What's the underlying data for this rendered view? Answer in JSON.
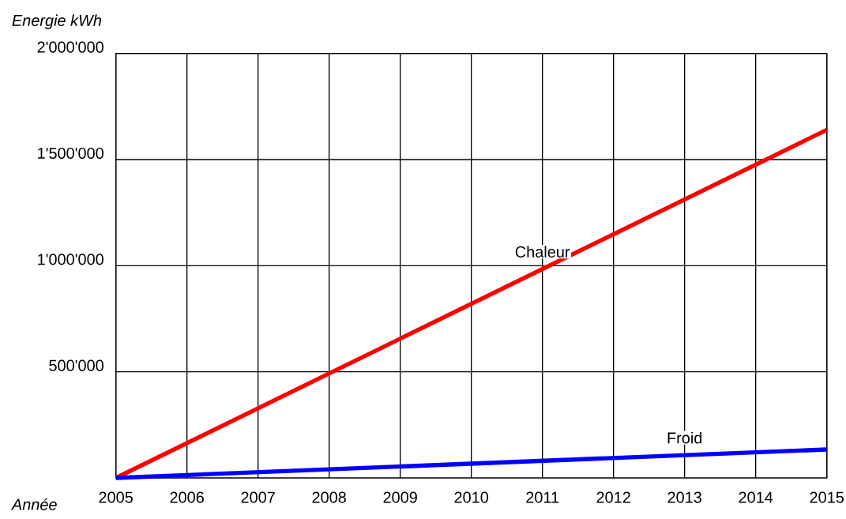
{
  "chart_data": {
    "type": "line",
    "xlabel": "Année",
    "ylabel": "Energie kWh",
    "xlim": [
      2005,
      2015
    ],
    "xticks": [
      2005,
      2006,
      2007,
      2008,
      2009,
      2010,
      2011,
      2012,
      2013,
      2014,
      2015
    ],
    "ylim": [
      0,
      2000000
    ],
    "yticks": [
      {
        "value": 500000,
        "label": "500'000"
      },
      {
        "value": 1000000,
        "label": "1'000'000"
      },
      {
        "value": 1500000,
        "label": "1'500'000"
      },
      {
        "value": 2000000,
        "label": "2'000'000"
      }
    ],
    "grid": true,
    "legend": false,
    "marker": "none",
    "line_style": "solid",
    "x": [
      2005,
      2015
    ],
    "series": [
      {
        "name": "Chaleur",
        "color": "#ff0000",
        "values": [
          0,
          1640000
        ]
      },
      {
        "name": "Froid",
        "color": "#0000ff",
        "values": [
          0,
          134000
        ]
      }
    ]
  }
}
